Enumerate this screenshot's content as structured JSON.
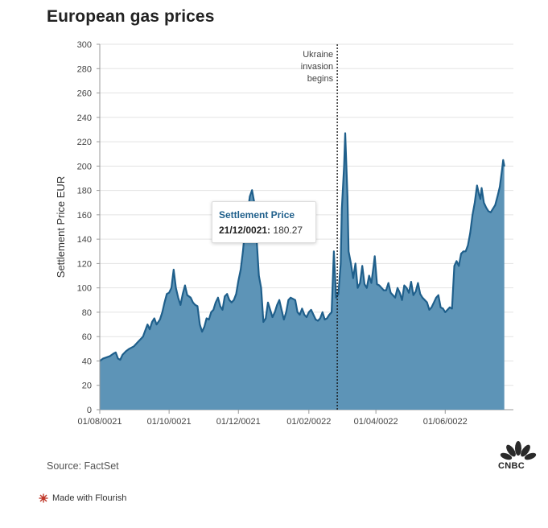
{
  "title": "European gas prices",
  "source": "Source: FactSet",
  "footer": {
    "made_with": "Made with Flourish"
  },
  "brand": {
    "logo_text": "CNBC"
  },
  "tooltip": {
    "title": "Settlement Price",
    "date": "21/12/0021:",
    "value": "180.27"
  },
  "colors": {
    "area_fill": "#5d94b7",
    "line": "#1f5f8b",
    "grid": "#e3e3e3",
    "axis_text": "#444444"
  },
  "chart_data": {
    "type": "area",
    "title": "European gas prices",
    "ylabel": "Settlement Price EUR",
    "xlabel": "",
    "ylim": [
      0,
      300
    ],
    "yticks": [
      0,
      20,
      40,
      60,
      80,
      100,
      120,
      140,
      160,
      180,
      200,
      220,
      240,
      260,
      280,
      300
    ],
    "xlim_days": [
      0,
      364
    ],
    "xticks": [
      {
        "day": 0,
        "label": "01/08/0021"
      },
      {
        "day": 61,
        "label": "01/10/0021"
      },
      {
        "day": 122,
        "label": "01/12/0021"
      },
      {
        "day": 184,
        "label": "01/02/0022"
      },
      {
        "day": 243,
        "label": "01/04/0022"
      },
      {
        "day": 304,
        "label": "01/06/0022"
      }
    ],
    "annotation": {
      "day": 209,
      "text": [
        "Ukraine",
        "invasion",
        "begins"
      ]
    },
    "series": [
      {
        "name": "Settlement Price",
        "points": [
          [
            0,
            40
          ],
          [
            3,
            42
          ],
          [
            6,
            43
          ],
          [
            9,
            44
          ],
          [
            12,
            46
          ],
          [
            14,
            47
          ],
          [
            16,
            42
          ],
          [
            18,
            41
          ],
          [
            20,
            45
          ],
          [
            23,
            48
          ],
          [
            26,
            50
          ],
          [
            30,
            52
          ],
          [
            34,
            56
          ],
          [
            38,
            60
          ],
          [
            40,
            65
          ],
          [
            42,
            70
          ],
          [
            44,
            66
          ],
          [
            46,
            72
          ],
          [
            48,
            75
          ],
          [
            50,
            70
          ],
          [
            53,
            74
          ],
          [
            55,
            80
          ],
          [
            57,
            88
          ],
          [
            59,
            95
          ],
          [
            61,
            96
          ],
          [
            63,
            100
          ],
          [
            65,
            115
          ],
          [
            67,
            100
          ],
          [
            69,
            92
          ],
          [
            71,
            86
          ],
          [
            73,
            95
          ],
          [
            75,
            102
          ],
          [
            77,
            94
          ],
          [
            80,
            92
          ],
          [
            82,
            88
          ],
          [
            84,
            86
          ],
          [
            86,
            85
          ],
          [
            88,
            70
          ],
          [
            90,
            64
          ],
          [
            92,
            68
          ],
          [
            94,
            75
          ],
          [
            96,
            74
          ],
          [
            98,
            80
          ],
          [
            100,
            82
          ],
          [
            102,
            88
          ],
          [
            104,
            92
          ],
          [
            106,
            85
          ],
          [
            108,
            82
          ],
          [
            110,
            93
          ],
          [
            112,
            95
          ],
          [
            114,
            90
          ],
          [
            116,
            88
          ],
          [
            118,
            90
          ],
          [
            120,
            95
          ],
          [
            122,
            106
          ],
          [
            124,
            115
          ],
          [
            126,
            130
          ],
          [
            128,
            150
          ],
          [
            130,
            160
          ],
          [
            132,
            175
          ],
          [
            134,
            180.27
          ],
          [
            136,
            170
          ],
          [
            138,
            140
          ],
          [
            140,
            110
          ],
          [
            142,
            100
          ],
          [
            144,
            72
          ],
          [
            146,
            75
          ],
          [
            148,
            88
          ],
          [
            150,
            82
          ],
          [
            152,
            76
          ],
          [
            154,
            80
          ],
          [
            156,
            86
          ],
          [
            158,
            90
          ],
          [
            160,
            82
          ],
          [
            162,
            74
          ],
          [
            164,
            80
          ],
          [
            166,
            90
          ],
          [
            168,
            92
          ],
          [
            170,
            91
          ],
          [
            172,
            90
          ],
          [
            174,
            80
          ],
          [
            176,
            78
          ],
          [
            178,
            83
          ],
          [
            180,
            78
          ],
          [
            182,
            76
          ],
          [
            184,
            80
          ],
          [
            186,
            82
          ],
          [
            188,
            78
          ],
          [
            190,
            74
          ],
          [
            192,
            73
          ],
          [
            194,
            75
          ],
          [
            196,
            80
          ],
          [
            198,
            74
          ],
          [
            200,
            75
          ],
          [
            202,
            78
          ],
          [
            204,
            80
          ],
          [
            206,
            130
          ],
          [
            208,
            92
          ],
          [
            210,
            95
          ],
          [
            212,
            120
          ],
          [
            213,
            165
          ],
          [
            215,
            200
          ],
          [
            216,
            227
          ],
          [
            218,
            175
          ],
          [
            219,
            130
          ],
          [
            221,
            120
          ],
          [
            223,
            108
          ],
          [
            225,
            120
          ],
          [
            227,
            100
          ],
          [
            229,
            104
          ],
          [
            231,
            118
          ],
          [
            233,
            103
          ],
          [
            235,
            100
          ],
          [
            237,
            110
          ],
          [
            239,
            104
          ],
          [
            241,
            118
          ],
          [
            242,
            126
          ],
          [
            244,
            103
          ],
          [
            246,
            102
          ],
          [
            248,
            100
          ],
          [
            250,
            98
          ],
          [
            252,
            98
          ],
          [
            254,
            104
          ],
          [
            256,
            96
          ],
          [
            258,
            94
          ],
          [
            260,
            92
          ],
          [
            262,
            100
          ],
          [
            264,
            96
          ],
          [
            266,
            90
          ],
          [
            268,
            102
          ],
          [
            270,
            100
          ],
          [
            272,
            96
          ],
          [
            274,
            105
          ],
          [
            276,
            94
          ],
          [
            278,
            97
          ],
          [
            280,
            104
          ],
          [
            282,
            95
          ],
          [
            284,
            92
          ],
          [
            286,
            90
          ],
          [
            288,
            88
          ],
          [
            290,
            82
          ],
          [
            292,
            84
          ],
          [
            294,
            88
          ],
          [
            296,
            92
          ],
          [
            298,
            94
          ],
          [
            300,
            84
          ],
          [
            302,
            83
          ],
          [
            304,
            80
          ],
          [
            306,
            82
          ],
          [
            308,
            84
          ],
          [
            310,
            83
          ],
          [
            312,
            118
          ],
          [
            314,
            122
          ],
          [
            316,
            118
          ],
          [
            318,
            128
          ],
          [
            320,
            130
          ],
          [
            322,
            130
          ],
          [
            324,
            135
          ],
          [
            326,
            145
          ],
          [
            328,
            160
          ],
          [
            330,
            170
          ],
          [
            332,
            184
          ],
          [
            334,
            176
          ],
          [
            335,
            173
          ],
          [
            336,
            182
          ],
          [
            338,
            170
          ],
          [
            340,
            166
          ],
          [
            342,
            163
          ],
          [
            344,
            162
          ],
          [
            346,
            165
          ],
          [
            348,
            168
          ],
          [
            350,
            175
          ],
          [
            352,
            183
          ],
          [
            354,
            197
          ],
          [
            355,
            205
          ],
          [
            356,
            200
          ]
        ]
      }
    ]
  }
}
